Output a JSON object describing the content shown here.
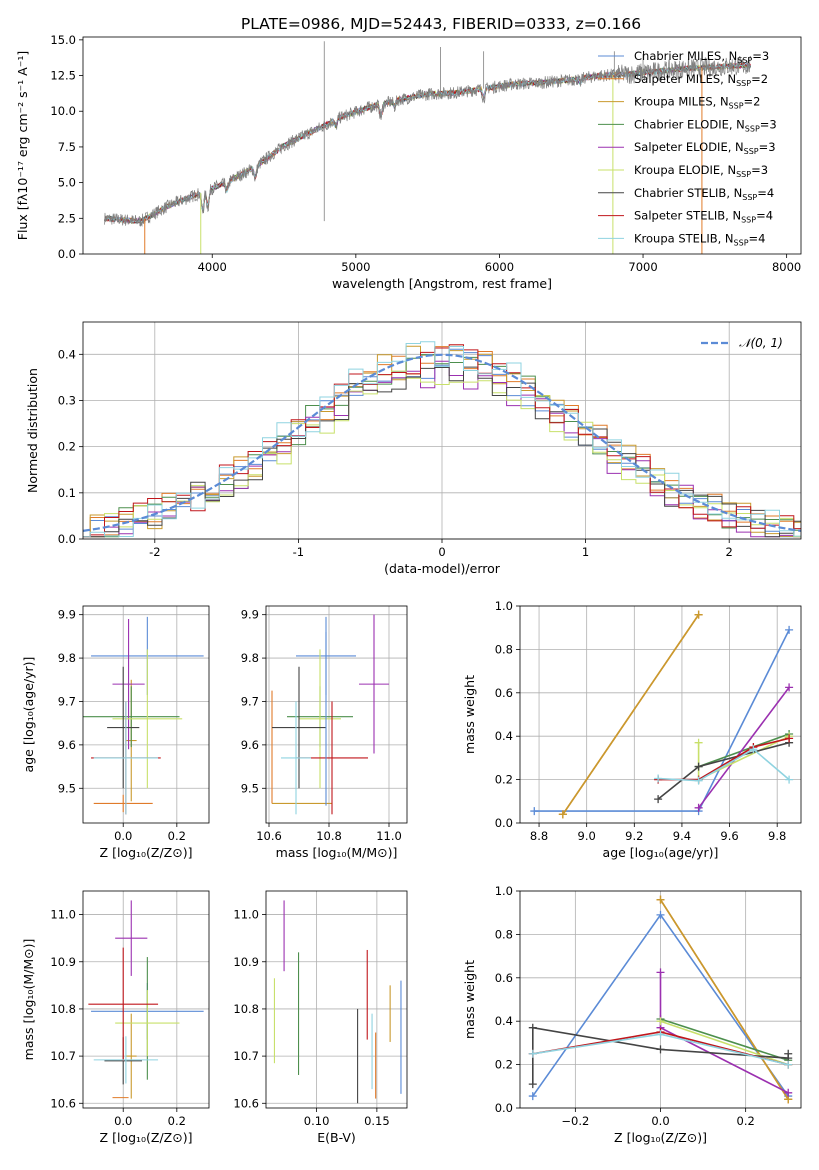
{
  "figure_title": "PLATE=0986, MJD=52443, FIBERID=0333, z=0.166",
  "colors": {
    "Chabrier MILES": "#5b8bd6",
    "Salpeter MILES": "#e07b2a",
    "Kroupa MILES": "#c99a2e",
    "Chabrier ELODIE": "#4d8f4d",
    "Salpeter ELODIE": "#9b30b0",
    "Kroupa ELODIE": "#c8e06a",
    "Chabrier STELIB": "#444444",
    "Salpeter STELIB": "#c0161b",
    "Kroupa STELIB": "#8fd3e0",
    "spectrum": "#808080",
    "normal": "#5b8bd6"
  },
  "chart_data": [
    {
      "id": "spectrum",
      "type": "line",
      "xlabel": "wavelength [Angstrom, rest frame]",
      "ylabel": "Flux [fλ10⁻¹⁷ erg cm⁻² s⁻¹ A⁻¹]",
      "xlim": [
        3100,
        8100
      ],
      "ylim": [
        0,
        15.2
      ],
      "xticks": [
        4000,
        5000,
        6000,
        7000,
        8000
      ],
      "yticks": [
        0.0,
        2.5,
        5.0,
        7.5,
        10.0,
        12.5,
        15.0
      ],
      "grid": false,
      "legend_position": "top-right",
      "legend": [
        {
          "model": "Chabrier MILES",
          "label": "Chabrier MILES, N",
          "sub": "SSP",
          "tail": "=3"
        },
        {
          "model": "Salpeter MILES",
          "label": "Salpeter MILES, N",
          "sub": "SSP",
          "tail": "=2"
        },
        {
          "model": "Kroupa MILES",
          "label": "Kroupa MILES, N",
          "sub": "SSP",
          "tail": "=2"
        },
        {
          "model": "Chabrier ELODIE",
          "label": "Chabrier ELODIE, N",
          "sub": "SSP",
          "tail": "=3"
        },
        {
          "model": "Salpeter ELODIE",
          "label": "Salpeter ELODIE, N",
          "sub": "SSP",
          "tail": "=3"
        },
        {
          "model": "Kroupa ELODIE",
          "label": "Kroupa ELODIE, N",
          "sub": "SSP",
          "tail": "=3"
        },
        {
          "model": "Chabrier STELIB",
          "label": "Chabrier STELIB, N",
          "sub": "SSP",
          "tail": "=4"
        },
        {
          "model": "Salpeter STELIB",
          "label": "Salpeter STELIB, N",
          "sub": "SSP",
          "tail": "=4"
        },
        {
          "model": "Kroupa STELIB",
          "label": "Kroupa STELIB, N",
          "sub": "SSP",
          "tail": "=4"
        }
      ],
      "continuum": [
        [
          3250,
          2.5
        ],
        [
          3500,
          2.3
        ],
        [
          3700,
          3.4
        ],
        [
          3900,
          4.2
        ],
        [
          4100,
          5.0
        ],
        [
          4300,
          6.1
        ],
        [
          4500,
          7.6
        ],
        [
          4700,
          8.6
        ],
        [
          4900,
          9.6
        ],
        [
          5100,
          10.3
        ],
        [
          5300,
          10.8
        ],
        [
          5500,
          11.2
        ],
        [
          5700,
          11.3
        ],
        [
          5900,
          11.6
        ],
        [
          6100,
          11.9
        ],
        [
          6300,
          12.0
        ],
        [
          6500,
          12.2
        ],
        [
          6700,
          12.5
        ],
        [
          6900,
          12.6
        ],
        [
          7100,
          12.8
        ],
        [
          7300,
          13.0
        ],
        [
          7500,
          13.1
        ],
        [
          7700,
          13.2
        ]
      ],
      "features": [
        [
          3934,
          -1.4
        ],
        [
          3969,
          -1.2
        ],
        [
          4102,
          -0.6
        ],
        [
          4300,
          -0.8
        ],
        [
          4861,
          -0.5
        ],
        [
          5175,
          -0.9
        ],
        [
          5270,
          -0.4
        ],
        [
          5890,
          -0.7
        ],
        [
          6563,
          -0.3
        ]
      ],
      "spikes": [
        [
          4780,
          2.3,
          14.9
        ],
        [
          5590,
          14.5
        ],
        [
          5890,
          14.2
        ],
        [
          6800,
          14.2
        ],
        [
          7000,
          14.0
        ]
      ]
    },
    {
      "id": "residuals",
      "type": "histogram",
      "xlabel": "(data-model)/error",
      "ylabel": "Normed distribution",
      "xlim": [
        -2.5,
        2.5
      ],
      "ylim": [
        0,
        0.47
      ],
      "xticks": [
        -2,
        -1,
        0,
        1,
        2
      ],
      "yticks": [
        0.0,
        0.1,
        0.2,
        0.3,
        0.4
      ],
      "grid": true,
      "legend_position": "top-right",
      "legend_label": "𝒩(0, 1)",
      "bin_width": 0.1
    },
    {
      "id": "age-vs-Z",
      "type": "errorbar",
      "xlabel": "Z [log₁₀(Z/Z⊙)]",
      "ylabel": "age  [log₁₀(age/yr)]",
      "xlim": [
        -0.15,
        0.32
      ],
      "ylim": [
        9.42,
        9.92
      ],
      "xticks": [
        0.0,
        0.2
      ],
      "yticks": [
        9.5,
        9.6,
        9.7,
        9.8,
        9.9
      ],
      "grid": true,
      "points": [
        {
          "model": "Chabrier MILES",
          "x": 0.09,
          "xerr": 0.21,
          "y": 9.805,
          "yerr": 0.09
        },
        {
          "model": "Salpeter MILES",
          "x": 0.0,
          "xerr": 0.11,
          "y": 9.465,
          "yerr": 0.02
        },
        {
          "model": "Kroupa MILES",
          "x": 0.03,
          "xerr": 0.02,
          "y": 9.61,
          "yerr": 0.14
        },
        {
          "model": "Chabrier ELODIE",
          "x": 0.03,
          "xerr": 0.18,
          "y": 9.665,
          "yerr": 0.07
        },
        {
          "model": "Salpeter ELODIE",
          "x": 0.02,
          "xerr": 0.06,
          "y": 9.74,
          "yerr": 0.15
        },
        {
          "model": "Kroupa ELODIE",
          "x": 0.09,
          "xerr": 0.13,
          "y": 9.66,
          "yerr": 0.16
        },
        {
          "model": "Chabrier STELIB",
          "x": 0.0,
          "xerr": 0.06,
          "y": 9.64,
          "yerr": 0.14
        },
        {
          "model": "Salpeter STELIB",
          "x": 0.01,
          "xerr": 0.13,
          "y": 9.57,
          "yerr": 0.13
        },
        {
          "model": "Kroupa STELIB",
          "x": 0.01,
          "xerr": 0.12,
          "y": 9.57,
          "yerr": 0.13
        }
      ]
    },
    {
      "id": "age-vs-mass",
      "type": "errorbar",
      "xlabel": "mass [log₁₀(M/M⊙)]",
      "ylabel": "",
      "xlim": [
        10.59,
        11.06
      ],
      "ylim": [
        9.42,
        9.92
      ],
      "xticks": [
        10.6,
        10.8,
        11.0
      ],
      "yticks": [
        9.5,
        9.6,
        9.7,
        9.8,
        9.9
      ],
      "grid": true,
      "points": [
        {
          "model": "Chabrier MILES",
          "x": 10.79,
          "xerr": 0.1,
          "y": 9.805,
          "yerr": 0.09
        },
        {
          "model": "Salpeter MILES",
          "x": 10.61,
          "xerr": 0.0,
          "y": 9.595,
          "yerr": 0.13
        },
        {
          "model": "Kroupa MILES",
          "x": 10.71,
          "xerr": 0.1,
          "y": 9.465,
          "yerr": 0.0
        },
        {
          "model": "Chabrier ELODIE",
          "x": 10.77,
          "xerr": 0.11,
          "y": 9.665,
          "yerr": 0.07
        },
        {
          "model": "Salpeter ELODIE",
          "x": 10.95,
          "xerr": 0.05,
          "y": 9.74,
          "yerr": 0.16
        },
        {
          "model": "Kroupa ELODIE",
          "x": 10.77,
          "xerr": 0.07,
          "y": 9.66,
          "yerr": 0.16
        },
        {
          "model": "Chabrier STELIB",
          "x": 10.7,
          "xerr": 0.09,
          "y": 9.64,
          "yerr": 0.14
        },
        {
          "model": "Salpeter STELIB",
          "x": 10.81,
          "xerr": 0.12,
          "y": 9.57,
          "yerr": 0.13
        },
        {
          "model": "Kroupa STELIB",
          "x": 10.69,
          "xerr": 0.05,
          "y": 9.57,
          "yerr": 0.13
        },
        {
          "model": "Chabrier MILES",
          "x": 10.79,
          "xerr": 0.0,
          "y": 9.66,
          "yerr": 0.2
        }
      ]
    },
    {
      "id": "mass-weight-vs-age",
      "type": "line",
      "xlabel": "age  [log₁₀(age/yr)]",
      "ylabel": "mass weight",
      "xlim": [
        8.72,
        9.9
      ],
      "ylim": [
        0,
        1.0
      ],
      "xticks": [
        8.8,
        9.0,
        9.2,
        9.4,
        9.6,
        9.8
      ],
      "yticks": [
        0.0,
        0.2,
        0.4,
        0.6,
        0.8,
        1.0
      ],
      "grid": true,
      "series": [
        {
          "model": "Chabrier MILES",
          "x": [
            8.78,
            9.47,
            9.85
          ],
          "y": [
            0.055,
            0.055,
            0.89
          ]
        },
        {
          "model": "Salpeter MILES",
          "x": [
            8.9,
            9.47
          ],
          "y": [
            0.04,
            0.96
          ]
        },
        {
          "model": "Kroupa MILES",
          "x": [
            8.9,
            9.47
          ],
          "y": [
            0.04,
            0.96
          ]
        },
        {
          "model": "Chabrier ELODIE",
          "x": [
            9.47,
            9.85
          ],
          "y": [
            0.26,
            0.41
          ]
        },
        {
          "model": "Salpeter ELODIE",
          "x": [
            9.47,
            9.85
          ],
          "y": [
            0.07,
            0.625
          ]
        },
        {
          "model": "Kroupa ELODIE",
          "x": [
            9.47,
            9.47,
            9.85
          ],
          "y": [
            0.37,
            0.2,
            0.4
          ]
        },
        {
          "model": "Chabrier STELIB",
          "x": [
            9.3,
            9.47,
            9.85
          ],
          "y": [
            0.11,
            0.26,
            0.37
          ]
        },
        {
          "model": "Salpeter STELIB",
          "x": [
            9.3,
            9.47,
            9.7,
            9.85
          ],
          "y": [
            0.2,
            0.2,
            0.35,
            0.39
          ]
        },
        {
          "model": "Kroupa STELIB",
          "x": [
            9.3,
            9.47,
            9.7,
            9.85
          ],
          "y": [
            0.205,
            0.195,
            0.34,
            0.2
          ]
        }
      ]
    },
    {
      "id": "mass-vs-Z",
      "type": "errorbar",
      "xlabel": "Z [log₁₀(Z/Z⊙)]",
      "ylabel": "mass [log₁₀(M/M⊙)]",
      "xlim": [
        -0.15,
        0.32
      ],
      "ylim": [
        10.59,
        11.05
      ],
      "xticks": [
        0.0,
        0.2
      ],
      "yticks": [
        10.6,
        10.7,
        10.8,
        10.9,
        11.0
      ],
      "grid": true,
      "points": [
        {
          "model": "Chabrier MILES",
          "x": 0.09,
          "xerr": 0.21,
          "y": 10.795,
          "yerr": 0.06
        },
        {
          "model": "Salpeter MILES",
          "x": -0.01,
          "xerr": 0.03,
          "y": 10.612,
          "yerr": 0.0
        },
        {
          "model": "Kroupa MILES",
          "x": 0.03,
          "xerr": 0.02,
          "y": 10.7,
          "yerr": 0.09
        },
        {
          "model": "Chabrier ELODIE",
          "x": 0.09,
          "xerr": 0.0,
          "y": 10.78,
          "yerr": 0.13
        },
        {
          "model": "Salpeter ELODIE",
          "x": 0.03,
          "xerr": 0.06,
          "y": 10.95,
          "yerr": 0.08
        },
        {
          "model": "Kroupa ELODIE",
          "x": 0.09,
          "xerr": 0.12,
          "y": 10.77,
          "yerr": 0.07
        },
        {
          "model": "Chabrier STELIB",
          "x": 0.0,
          "xerr": 0.07,
          "y": 10.69,
          "yerr": 0.05
        },
        {
          "model": "Salpeter STELIB",
          "x": 0.0,
          "xerr": 0.13,
          "y": 10.81,
          "yerr": 0.12
        },
        {
          "model": "Kroupa STELIB",
          "x": 0.01,
          "xerr": 0.12,
          "y": 10.692,
          "yerr": 0.05
        }
      ]
    },
    {
      "id": "mass-vs-EBV",
      "type": "errorbar",
      "xlabel": "E(B-V)",
      "ylabel": "",
      "xlim": [
        0.058,
        0.175
      ],
      "ylim": [
        10.59,
        11.05
      ],
      "xticks": [
        0.1,
        0.15
      ],
      "yticks": [
        10.6,
        10.7,
        10.8,
        10.9,
        11.0
      ],
      "grid": true,
      "points": [
        {
          "model": "Kroupa ELODIE",
          "x": 0.065,
          "xerr": 0,
          "y": 10.775,
          "yerr": 0.09
        },
        {
          "model": "Salpeter ELODIE",
          "x": 0.073,
          "xerr": 0,
          "y": 10.955,
          "yerr": 0.075
        },
        {
          "model": "Chabrier ELODIE",
          "x": 0.085,
          "xerr": 0,
          "y": 10.79,
          "yerr": 0.13
        },
        {
          "model": "Chabrier STELIB",
          "x": 0.134,
          "xerr": 0,
          "y": 10.7,
          "yerr": 0.1
        },
        {
          "model": "Salpeter STELIB",
          "x": 0.142,
          "xerr": 0,
          "y": 10.83,
          "yerr": 0.095
        },
        {
          "model": "Kroupa STELIB",
          "x": 0.146,
          "xerr": 0,
          "y": 10.71,
          "yerr": 0.08
        },
        {
          "model": "Salpeter MILES",
          "x": 0.149,
          "xerr": 0,
          "y": 10.68,
          "yerr": 0.07
        },
        {
          "model": "Kroupa MILES",
          "x": 0.161,
          "xerr": 0,
          "y": 10.79,
          "yerr": 0.06
        },
        {
          "model": "Chabrier MILES",
          "x": 0.17,
          "xerr": 0,
          "y": 10.74,
          "yerr": 0.12
        }
      ]
    },
    {
      "id": "mass-weight-vs-Z",
      "type": "line",
      "xlabel": "Z [log₁₀(Z/Z⊙)]",
      "ylabel": "mass weight",
      "xlim": [
        -0.33,
        0.33
      ],
      "ylim": [
        0,
        1.0
      ],
      "xticks": [
        -0.2,
        0.0,
        0.2
      ],
      "yticks": [
        0.0,
        0.2,
        0.4,
        0.6,
        0.8,
        1.0
      ],
      "grid": true,
      "series": [
        {
          "model": "Chabrier MILES",
          "x": [
            -0.3,
            0.0,
            0.3
          ],
          "y": [
            0.055,
            0.89,
            0.055
          ]
        },
        {
          "model": "Salpeter MILES",
          "x": [
            0.0,
            0.3
          ],
          "y": [
            0.96,
            0.04
          ]
        },
        {
          "model": "Kroupa MILES",
          "x": [
            0.0,
            0.3
          ],
          "y": [
            0.96,
            0.04
          ]
        },
        {
          "model": "Chabrier ELODIE",
          "x": [
            0.0,
            0.3
          ],
          "y": [
            0.41,
            0.22
          ]
        },
        {
          "model": "Salpeter ELODIE",
          "x": [
            0.0,
            0.0,
            0.3
          ],
          "y": [
            0.625,
            0.37,
            0.07
          ]
        },
        {
          "model": "Kroupa ELODIE",
          "x": [
            0.0,
            0.3
          ],
          "y": [
            0.4,
            0.2
          ]
        },
        {
          "model": "Chabrier STELIB",
          "x": [
            -0.3,
            -0.3,
            0.0,
            0.3,
            0.3
          ],
          "y": [
            0.11,
            0.37,
            0.27,
            0.23,
            0.25
          ]
        },
        {
          "model": "Salpeter STELIB",
          "x": [
            -0.3,
            0.0,
            0.3
          ],
          "y": [
            0.25,
            0.35,
            0.2
          ]
        },
        {
          "model": "Kroupa STELIB",
          "x": [
            -0.3,
            0.0,
            0.3
          ],
          "y": [
            0.25,
            0.34,
            0.2
          ]
        }
      ]
    }
  ]
}
